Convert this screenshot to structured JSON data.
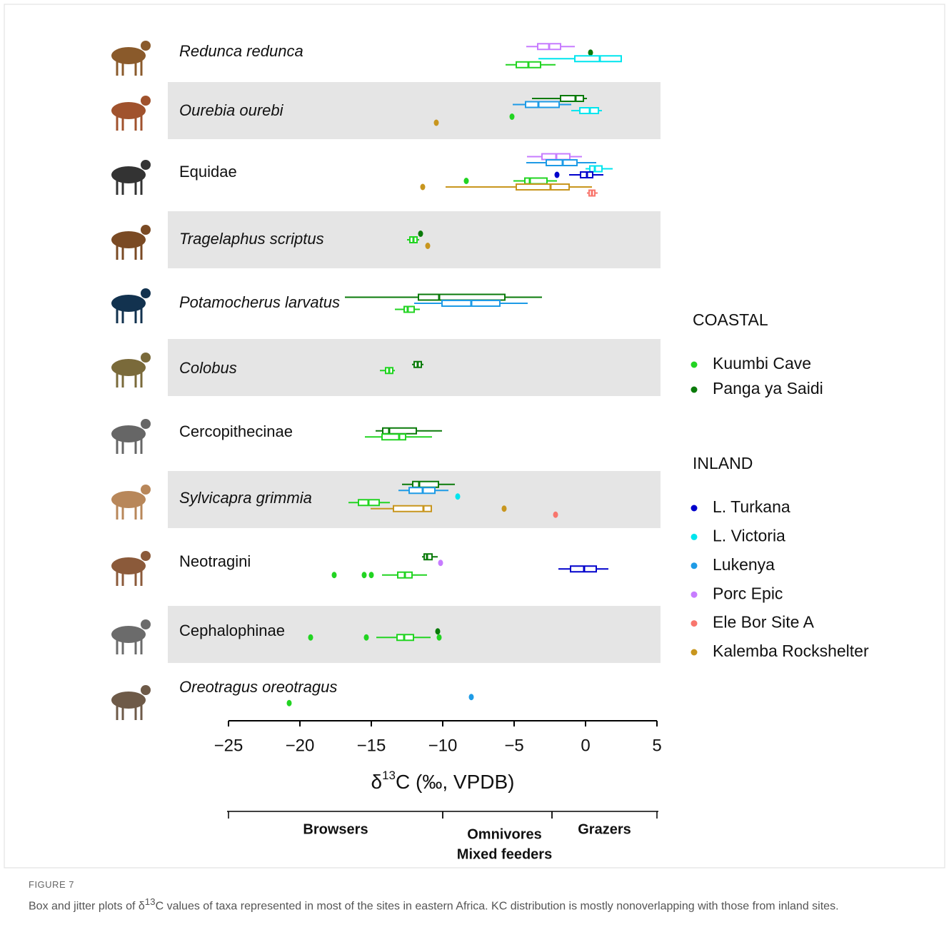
{
  "chart_data": {
    "type": "box",
    "categories": [
      {
        "label": "Redunca redunca",
        "italic": true,
        "shaded": false,
        "items": [
          {
            "site": "Porc Epic",
            "box": [
              -4.15,
              -3.35,
              -2.55,
              -1.75,
              -0.75
            ]
          },
          {
            "site": "Panga ya Saidi",
            "points": [
              0.35
            ]
          },
          {
            "site": "L. Victoria",
            "box": [
              -3.3,
              -0.75,
              1.0,
              2.5,
              2.5
            ]
          },
          {
            "site": "Kuumbi Cave",
            "box": [
              -5.6,
              -4.85,
              -4.0,
              -3.15,
              -2.1
            ]
          }
        ]
      },
      {
        "label": "Ourebia ourebi",
        "italic": true,
        "shaded": true,
        "items": [
          {
            "site": "Panga ya Saidi",
            "box": [
              -3.75,
              -1.75,
              -0.7,
              -0.15,
              0.1
            ]
          },
          {
            "site": "Lukenya",
            "box": [
              -5.1,
              -4.2,
              -3.3,
              -1.85,
              -1.0
            ]
          },
          {
            "site": "L. Victoria",
            "box": [
              -1.0,
              -0.4,
              0.3,
              0.9,
              1.15
            ]
          },
          {
            "site": "Kuumbi Cave",
            "points": [
              -5.15
            ]
          },
          {
            "site": "Kalemba Rockshelter",
            "points": [
              -10.45
            ]
          }
        ]
      },
      {
        "label": "Equidae",
        "italic": false,
        "shaded": false,
        "items": [
          {
            "site": "Porc Epic",
            "box": [
              -4.1,
              -3.05,
              -2.05,
              -1.1,
              -0.25
            ]
          },
          {
            "site": "Lukenya",
            "box": [
              -4.15,
              -2.75,
              -1.6,
              -0.6,
              0.75
            ]
          },
          {
            "site": "L. Victoria",
            "box": [
              0.0,
              0.3,
              0.65,
              1.15,
              1.9
            ]
          },
          {
            "site": "L. Turkana",
            "box": [
              -1.15,
              -0.35,
              0.1,
              0.5,
              1.25
            ],
            "points": [
              -2.0
            ]
          },
          {
            "site": "Kuumbi Cave",
            "box": [
              -5.05,
              -4.25,
              -3.9,
              -2.7,
              -2.0
            ],
            "points": [
              -8.35
            ]
          },
          {
            "site": "Kalemba Rockshelter",
            "box": [
              -9.8,
              -4.85,
              -2.45,
              -1.15,
              0.45
            ],
            "points": [
              -11.4
            ]
          },
          {
            "site": "Ele Bor Site A",
            "box": [
              0.1,
              0.25,
              0.45,
              0.65,
              0.85
            ]
          }
        ]
      },
      {
        "label": "Tragelaphus scriptus",
        "italic": true,
        "shaded": true,
        "items": [
          {
            "site": "Panga ya Saidi",
            "points": [
              -11.55
            ]
          },
          {
            "site": "Kuumbi Cave",
            "box": [
              -12.5,
              -12.3,
              -12.05,
              -11.8,
              -11.65
            ]
          },
          {
            "site": "Kalemba Rockshelter",
            "points": [
              -11.05
            ]
          }
        ]
      },
      {
        "label": "Potamocherus larvatus",
        "italic": true,
        "shaded": false,
        "items": [
          {
            "site": "Panga ya Saidi",
            "box": [
              -16.85,
              -11.7,
              -10.25,
              -5.65,
              -3.05
            ]
          },
          {
            "site": "Lukenya",
            "box": [
              -12.0,
              -10.05,
              -8.0,
              -6.0,
              -4.05
            ]
          },
          {
            "site": "Kuumbi Cave",
            "box": [
              -13.35,
              -12.7,
              -12.45,
              -12.0,
              -11.6
            ]
          }
        ]
      },
      {
        "label": "Colobus",
        "italic": true,
        "shaded": true,
        "items": [
          {
            "site": "Panga ya Saidi",
            "box": [
              -12.15,
              -12.0,
              -11.75,
              -11.5,
              -11.35
            ]
          },
          {
            "site": "Kuumbi Cave",
            "box": [
              -14.4,
              -14.0,
              -13.75,
              -13.5,
              -13.35
            ]
          }
        ]
      },
      {
        "label": "Cercopithecinae",
        "italic": false,
        "shaded": false,
        "items": [
          {
            "site": "Panga ya Saidi",
            "box": [
              -14.7,
              -14.2,
              -13.75,
              -11.85,
              -10.05
            ]
          },
          {
            "site": "Kuumbi Cave",
            "box": [
              -15.45,
              -14.25,
              -13.05,
              -12.6,
              -10.75
            ]
          }
        ]
      },
      {
        "label": "Sylvicapra grimmia",
        "italic": true,
        "shaded": true,
        "items": [
          {
            "site": "Panga ya Saidi",
            "box": [
              -12.85,
              -12.1,
              -11.65,
              -10.3,
              -9.15
            ]
          },
          {
            "site": "Lukenya",
            "box": [
              -13.1,
              -12.35,
              -11.4,
              -10.55,
              -9.6
            ]
          },
          {
            "site": "L. Victoria",
            "points": [
              -8.95
            ]
          },
          {
            "site": "Kuumbi Cave",
            "box": [
              -16.6,
              -15.9,
              -15.2,
              -14.45,
              -13.7
            ]
          },
          {
            "site": "Kalemba Rockshelter",
            "box": [
              -15.05,
              -13.45,
              -11.35,
              -10.8,
              -10.75
            ],
            "points": [
              -5.7
            ]
          },
          {
            "site": "Ele Bor Site A",
            "points": [
              -2.1
            ]
          }
        ]
      },
      {
        "label": "Neotragini",
        "italic": false,
        "shaded": false,
        "items": [
          {
            "site": "Panga ya Saidi",
            "box": [
              -11.45,
              -11.3,
              -11.1,
              -10.75,
              -10.35
            ]
          },
          {
            "site": "Porc Epic",
            "points": [
              -10.15
            ]
          },
          {
            "site": "L. Turkana",
            "box": [
              -1.9,
              -1.05,
              -0.1,
              0.75,
              1.6
            ]
          },
          {
            "site": "Kuumbi Cave",
            "box": [
              -14.25,
              -13.15,
              -12.65,
              -12.15,
              -11.1
            ],
            "points": [
              -17.6,
              -15.5,
              -15.0
            ]
          }
        ]
      },
      {
        "label": "Cephalophinae",
        "italic": false,
        "shaded": true,
        "items": [
          {
            "site": "Panga ya Saidi",
            "points": [
              -10.35
            ]
          },
          {
            "site": "Kuumbi Cave",
            "box": [
              -14.65,
              -13.2,
              -12.7,
              -12.05,
              -10.85
            ],
            "points": [
              -19.25,
              -15.35,
              -10.25
            ]
          }
        ]
      },
      {
        "label": "Oreotragus oreotragus",
        "italic": true,
        "shaded": false,
        "items": [
          {
            "site": "Lukenya",
            "points": [
              -8.0
            ]
          },
          {
            "site": "Kuumbi Cave",
            "points": [
              -20.75
            ]
          }
        ]
      }
    ],
    "legend": [
      {
        "title": "COASTAL",
        "series": [
          {
            "name": "Kuumbi Cave",
            "color": "#22d422"
          },
          {
            "name": "Panga ya Saidi",
            "color": "#0a7a0a"
          }
        ]
      },
      {
        "title": "INLAND",
        "series": [
          {
            "name": "L. Turkana",
            "color": "#0000cc"
          },
          {
            "name": "L. Victoria",
            "color": "#00e5ee"
          },
          {
            "name": "Lukenya",
            "color": "#1e9be6"
          },
          {
            "name": "Porc Epic",
            "color": "#c77cff"
          },
          {
            "name": "Ele Bor Site A",
            "color": "#f8766d"
          },
          {
            "name": "Kalemba Rockshelter",
            "color": "#c8961e"
          }
        ]
      }
    ],
    "xlim": [
      -25,
      5
    ],
    "xticks": [
      {
        "value": -25,
        "label": "−25"
      },
      {
        "value": -20,
        "label": "−20"
      },
      {
        "value": -15,
        "label": "−15"
      },
      {
        "value": -10,
        "label": "−10"
      },
      {
        "value": -5,
        "label": "−5"
      },
      0,
      5
    ],
    "xlabel": {
      "prefix": "δ",
      "sup": "13",
      "suffix": "C (‰, VPDB)"
    },
    "feeding_groups": [
      {
        "lines": [
          "Browsers"
        ],
        "from": -25,
        "to": -10
      },
      {
        "lines": [
          "Omnivores",
          "Mixed feeders"
        ],
        "from": -10,
        "to": -2.35
      },
      {
        "lines": [
          "Grazers"
        ],
        "from": -2.35,
        "to": 5
      }
    ]
  },
  "caption": {
    "figure": "FIGURE 7",
    "prefix": "Box and jitter plots of δ",
    "sup": "13",
    "suffix": "C values of taxa represented in most of the sites in eastern Africa. KC distribution is mostly nonoverlapping with those from inland sites."
  }
}
